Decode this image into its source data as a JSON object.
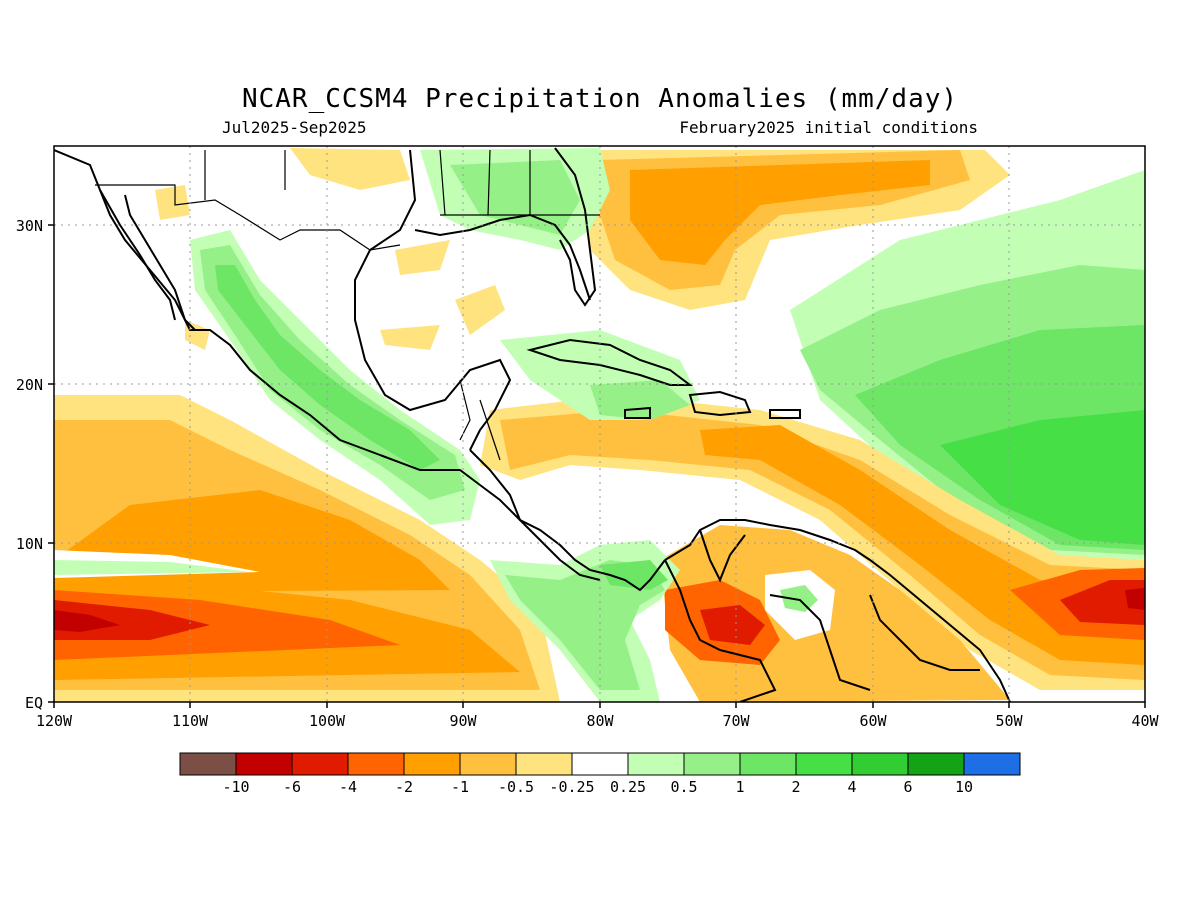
{
  "title": "NCAR_CCSM4 Precipitation Anomalies (mm/day)",
  "subtitle_left": "Jul2025-Sep2025",
  "subtitle_right": "February2025 initial conditions",
  "map": {
    "lon_range": [
      -120,
      -40
    ],
    "lat_range": [
      0,
      35
    ],
    "x_ticks": [
      "120W",
      "110W",
      "100W",
      "90W",
      "80W",
      "70W",
      "60W",
      "50W",
      "40W"
    ],
    "y_ticks": [
      "EQ",
      "10N",
      "20N",
      "30N"
    ]
  },
  "colorbar": {
    "colors": [
      "#7b4f46",
      "#c30000",
      "#e01b00",
      "#ff6400",
      "#ff9f00",
      "#ffbf3f",
      "#ffe37f",
      "#ffffff",
      "#c2ffb5",
      "#96f088",
      "#6de565",
      "#46e046",
      "#32cd32",
      "#14a314",
      "#1e6ee6"
    ],
    "labels": [
      "-10",
      "-6",
      "-4",
      "-2",
      "-1",
      "-0.5",
      "-0.25",
      "0.25",
      "0.5",
      "1",
      "2",
      "4",
      "6",
      "10"
    ]
  }
}
